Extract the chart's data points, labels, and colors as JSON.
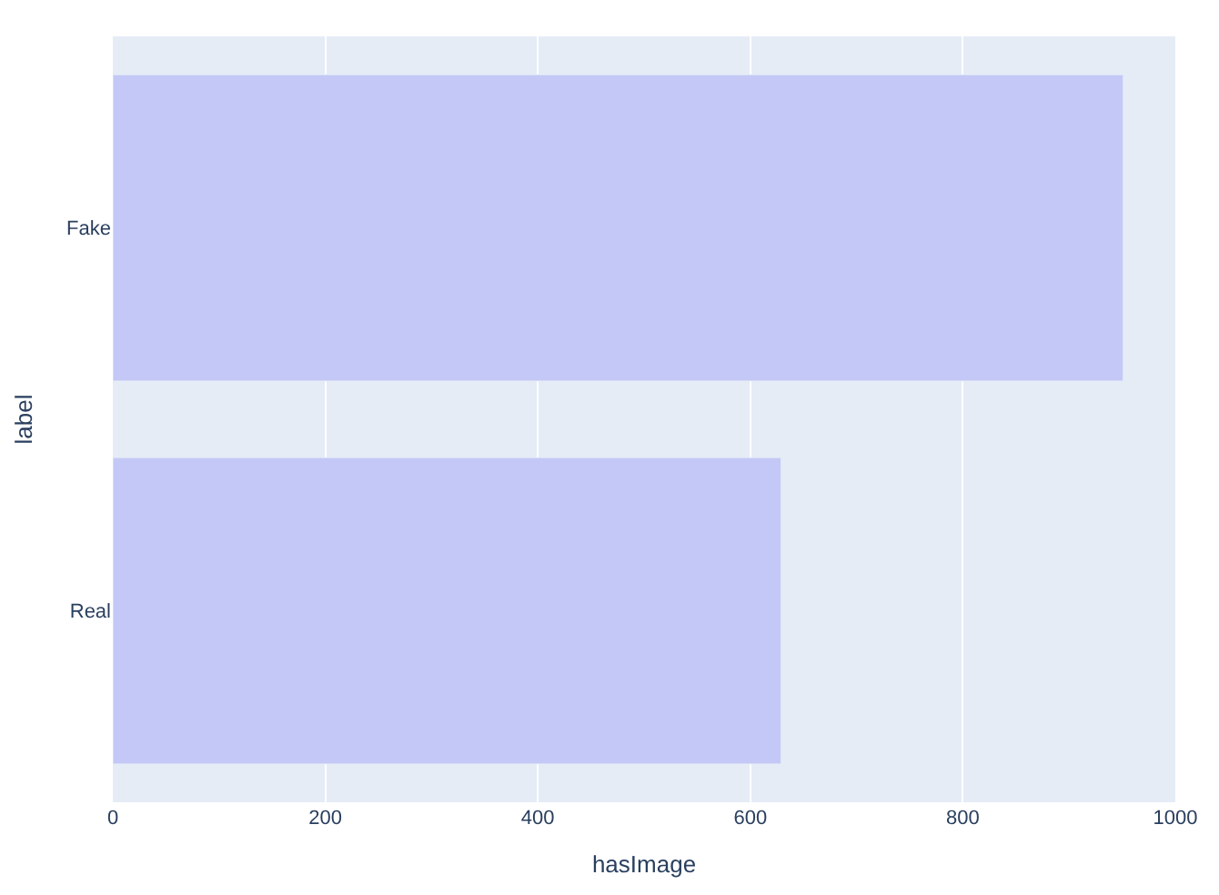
{
  "chart_data": {
    "type": "bar",
    "orientation": "horizontal",
    "xlabel": "hasImage",
    "ylabel": "label",
    "categories": [
      "Fake",
      "Real"
    ],
    "values": [
      951,
      629
    ],
    "color": "#c3c8f6",
    "xlim": [
      0,
      1000
    ],
    "xticks": [
      0,
      200,
      400,
      600,
      800,
      1000
    ],
    "grid": "x"
  }
}
